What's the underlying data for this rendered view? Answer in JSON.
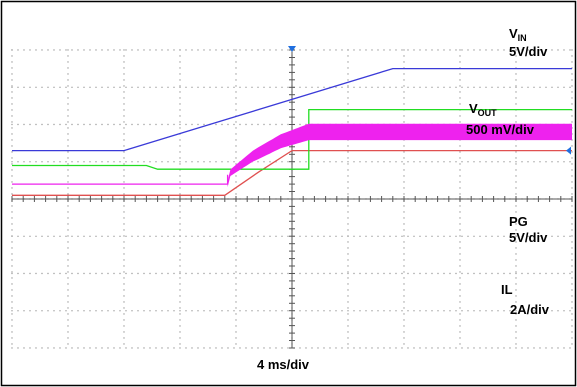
{
  "chart_data": {
    "type": "line",
    "title": "",
    "xlabel": "4 ms/div",
    "grid": true,
    "divisions": {
      "x": 10,
      "y": 8
    },
    "traces": [
      {
        "id": "vin",
        "label_main": "V",
        "label_sub": "IN",
        "scale": "5V/div",
        "color": "#3a3ad8",
        "points": [
          [
            0,
            1.3
          ],
          [
            2.0,
            1.3
          ],
          [
            6.8,
            3.5
          ],
          [
            10,
            3.5
          ]
        ]
      },
      {
        "id": "vout",
        "label_main": "V",
        "label_sub": "OUT",
        "scale": "500 mV/div",
        "color": "#e05050",
        "points": [
          [
            0,
            0.1
          ],
          [
            3.8,
            0.1
          ],
          [
            4.4,
            0.72
          ],
          [
            5.0,
            1.3
          ],
          [
            10,
            1.3
          ]
        ]
      },
      {
        "id": "pg",
        "label_main": "PG",
        "label_sub": "",
        "scale": "5V/div",
        "color": "#22dd22",
        "points": [
          [
            0,
            0.9
          ],
          [
            2.4,
            0.9
          ],
          [
            2.6,
            0.8
          ],
          [
            5.3,
            0.8
          ],
          [
            5.3,
            2.4
          ],
          [
            10,
            2.4
          ]
        ]
      },
      {
        "id": "il",
        "label_main": "IL",
        "label_sub": "",
        "scale": "2A/div",
        "color": "#ee22ee",
        "points": [
          [
            0,
            0.4
          ],
          [
            3.85,
            0.4
          ],
          [
            3.85,
            0.65
          ],
          [
            4.3,
            1.15
          ],
          [
            4.8,
            1.55
          ],
          [
            5.3,
            1.8
          ],
          [
            10,
            1.8
          ]
        ],
        "ripple": [
          [
            3.85,
            0.08
          ],
          [
            4.4,
            0.16
          ],
          [
            5.3,
            0.22
          ],
          [
            10,
            0.22
          ]
        ]
      }
    ],
    "trigger_color": "#1f6fe0"
  }
}
